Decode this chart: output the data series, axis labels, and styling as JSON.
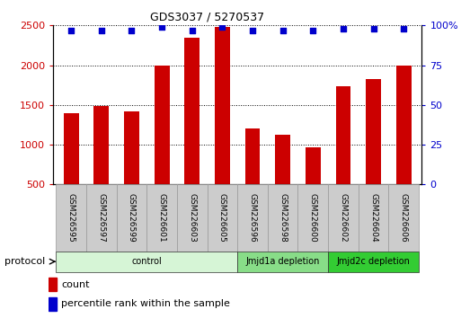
{
  "title": "GDS3037 / 5270537",
  "categories": [
    "GSM226595",
    "GSM226597",
    "GSM226599",
    "GSM226601",
    "GSM226603",
    "GSM226605",
    "GSM226596",
    "GSM226598",
    "GSM226600",
    "GSM226602",
    "GSM226604",
    "GSM226606"
  ],
  "bar_values": [
    1400,
    1490,
    1420,
    2000,
    2340,
    2480,
    1200,
    1130,
    970,
    1740,
    1830,
    1990
  ],
  "percentile_values": [
    97,
    97,
    97,
    99,
    97,
    99,
    97,
    97,
    97,
    98,
    98,
    98
  ],
  "bar_color": "#cc0000",
  "dot_color": "#0000cc",
  "ylim_left": [
    500,
    2500
  ],
  "ylim_right": [
    0,
    100
  ],
  "yticks_left": [
    500,
    1000,
    1500,
    2000,
    2500
  ],
  "yticks_right": [
    0,
    25,
    50,
    75,
    100
  ],
  "groups": [
    {
      "label": "control",
      "start": 0,
      "end": 6,
      "color": "#d6f5d6",
      "text_color": "#000000"
    },
    {
      "label": "Jmjd1a depletion",
      "start": 6,
      "end": 9,
      "color": "#88dd88",
      "text_color": "#000000"
    },
    {
      "label": "Jmjd2c depletion",
      "start": 9,
      "end": 12,
      "color": "#33cc33",
      "text_color": "#000000"
    }
  ],
  "legend_count_label": "count",
  "legend_percentile_label": "percentile rank within the sample",
  "protocol_label": "protocol",
  "bar_width": 0.5,
  "box_color": "#cccccc",
  "box_edge_color": "#999999"
}
